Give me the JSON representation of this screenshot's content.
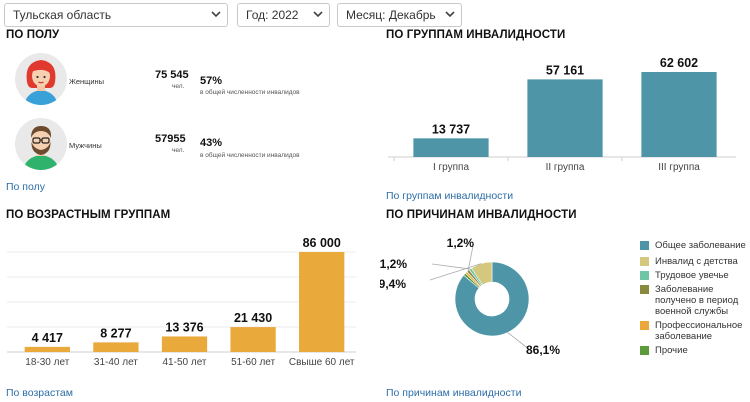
{
  "filters": {
    "region": "Тульская область",
    "year": "Год: 2022",
    "month": "Месяц: Декабрь"
  },
  "colors": {
    "gender_chart_bar": "#4e95a8",
    "age_chart_bar": "#e9a93b",
    "donut_main": "#4e95a8",
    "link": "#2d6ea8"
  },
  "gender": {
    "title": "ПО ПОЛУ",
    "women": {
      "label": "Женщины",
      "count": "75 545",
      "unit": "чел.",
      "pct": "57%",
      "note": "в общей численности инвалидов",
      "icon": "woman-avatar-icon"
    },
    "men": {
      "label": "Мужчины",
      "count": "57955",
      "unit": "чел.",
      "pct": "43%",
      "note": "в общей численности инвалидов",
      "icon": "man-avatar-icon"
    },
    "link": "По полу"
  },
  "groups": {
    "title": "ПО ГРУППАМ ИНВАЛИДНОСТИ",
    "link": "По группам инвалидности"
  },
  "age": {
    "title": "ПО ВОЗРАСТНЫМ ГРУППАМ",
    "link": "По возрастам"
  },
  "reasons": {
    "title": "ПО ПРИЧИНАМ ИНВАЛИДНОСТИ",
    "link": "По причинам инвалидности"
  },
  "chart_data": [
    {
      "type": "bar",
      "categories": [
        "I группа",
        "II группа",
        "III группа"
      ],
      "values": [
        13737,
        57161,
        62602
      ],
      "data_labels": [
        "13 737",
        "57 161",
        "62 602"
      ],
      "title": "ПО ГРУППАМ ИНВАЛИДНОСТИ",
      "ylim": [
        0,
        62602
      ],
      "grid": false,
      "color": "#4e95a8"
    },
    {
      "type": "bar",
      "categories": [
        "18-30 лет",
        "31-40 лет",
        "41-50 лет",
        "51-60 лет",
        "Свыше 60 лет"
      ],
      "values": [
        4417,
        8277,
        13376,
        21430,
        86000
      ],
      "data_labels": [
        "4 417",
        "8 277",
        "13 376",
        "21 430",
        "86 000"
      ],
      "title": "ПО ВОЗРАСТНЫМ ГРУППАМ",
      "ylim": [
        0,
        86000
      ],
      "grid": true,
      "color": "#e9a93b"
    },
    {
      "type": "pie",
      "title": "ПО ПРИЧИНАМ ИНВАЛИДНОСТИ",
      "legend_position": "right",
      "slices": [
        {
          "name": "Общее заболевание",
          "value": 86.1,
          "label": "86,1%",
          "color": "#4e95a8"
        },
        {
          "name": "Инвалид с детства",
          "value": 9.4,
          "label": "9,4%",
          "color": "#d4c77e"
        },
        {
          "name": "Трудовое увечье",
          "value": 1.2,
          "label": "1,2%",
          "color": "#6fc6a6"
        },
        {
          "name": "Заболевание получено в период военной службы",
          "value": 1.2,
          "label": "1,2%",
          "color": "#8a8a3e"
        },
        {
          "name": "Профессиональное заболевание",
          "value": 1.0,
          "label": "",
          "color": "#eaa83a"
        },
        {
          "name": "Прочие",
          "value": 1.1,
          "label": "",
          "color": "#5d9a3c"
        }
      ]
    }
  ]
}
